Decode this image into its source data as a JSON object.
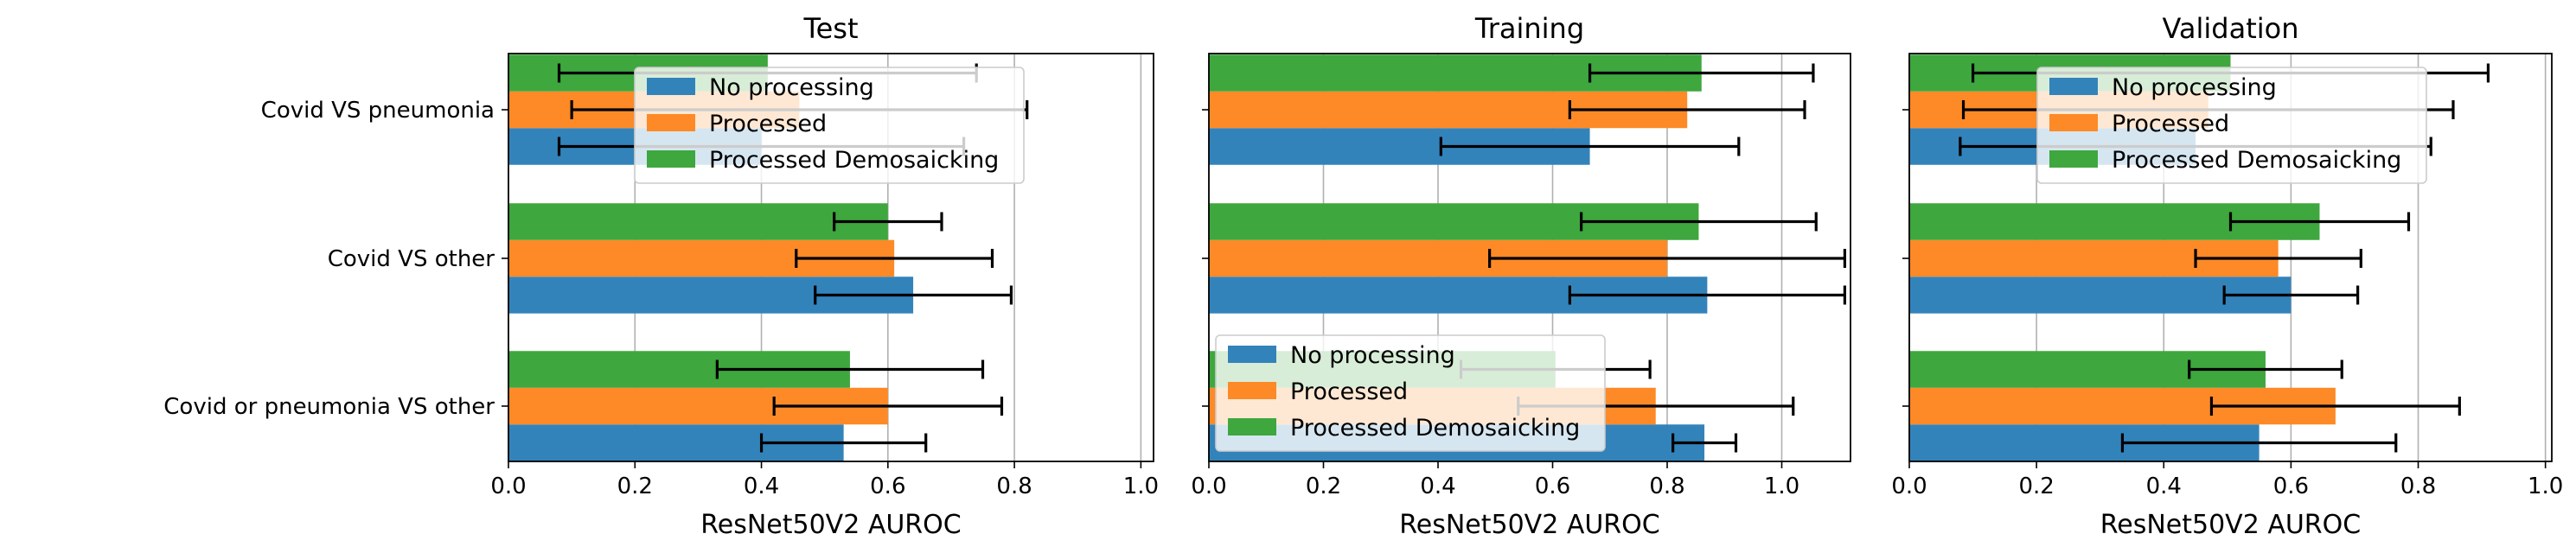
{
  "colors": {
    "No processing": "#3383bb",
    "Processed": "#fd8a26",
    "Processed Demosaicking": "#3ea73e",
    "grid": "#b0b0b0",
    "errorbar": "#000000"
  },
  "chart_data": [
    {
      "type": "bar",
      "orientation": "horizontal",
      "title": "Test",
      "xlabel": "ResNet50V2 AUROC",
      "xlim": [
        0,
        1.02
      ],
      "xticks": [
        0.0,
        0.2,
        0.4,
        0.6,
        0.8,
        1.0
      ],
      "xtick_labels": [
        "0.0",
        "0.2",
        "0.4",
        "0.6",
        "0.8",
        "1.0"
      ],
      "grid": "x",
      "legend_position": "top-center",
      "categories": [
        "Covid VS pneumonia",
        "Covid VS other",
        "Covid or pneumonia VS other"
      ],
      "series": [
        {
          "name": "No processing",
          "values": [
            0.4,
            0.64,
            0.53
          ],
          "errors": [
            0.32,
            0.155,
            0.13
          ]
        },
        {
          "name": "Processed",
          "values": [
            0.46,
            0.61,
            0.6
          ],
          "errors": [
            0.36,
            0.155,
            0.18
          ]
        },
        {
          "name": "Processed Demosaicking",
          "values": [
            0.41,
            0.6,
            0.54
          ],
          "errors": [
            0.33,
            0.085,
            0.21
          ]
        }
      ]
    },
    {
      "type": "bar",
      "orientation": "horizontal",
      "title": "Training",
      "xlabel": "ResNet50V2 AUROC",
      "xlim": [
        0,
        1.12
      ],
      "xticks": [
        0.0,
        0.2,
        0.4,
        0.6,
        0.8,
        1.0
      ],
      "xtick_labels": [
        "0.0",
        "0.2",
        "0.4",
        "0.6",
        "0.8",
        "1.0"
      ],
      "grid": "x",
      "legend_position": "lower-left",
      "categories": [
        "Covid VS pneumonia",
        "Covid VS other",
        "Covid or pneumonia VS other"
      ],
      "series": [
        {
          "name": "No processing",
          "values": [
            0.665,
            0.87,
            0.865
          ],
          "errors": [
            0.26,
            0.24,
            0.055
          ]
        },
        {
          "name": "Processed",
          "values": [
            0.835,
            0.8,
            0.78
          ],
          "errors": [
            0.205,
            0.31,
            0.24
          ]
        },
        {
          "name": "Processed Demosaicking",
          "values": [
            0.86,
            0.855,
            0.605
          ],
          "errors": [
            0.195,
            0.205,
            0.165
          ]
        }
      ]
    },
    {
      "type": "bar",
      "orientation": "horizontal",
      "title": "Validation",
      "xlabel": "ResNet50V2 AUROC",
      "xlim": [
        0,
        1.01
      ],
      "xticks": [
        0.0,
        0.2,
        0.4,
        0.6,
        0.8,
        1.0
      ],
      "xtick_labels": [
        "0.0",
        "0.2",
        "0.4",
        "0.6",
        "0.8",
        "1.0"
      ],
      "grid": "x",
      "legend_position": "top-center",
      "categories": [
        "Covid VS pneumonia",
        "Covid VS other",
        "Covid or pneumonia VS other"
      ],
      "series": [
        {
          "name": "No processing",
          "values": [
            0.45,
            0.6,
            0.55
          ],
          "errors": [
            0.37,
            0.105,
            0.215
          ]
        },
        {
          "name": "Processed",
          "values": [
            0.47,
            0.58,
            0.67
          ],
          "errors": [
            0.385,
            0.13,
            0.195
          ]
        },
        {
          "name": "Processed Demosaicking",
          "values": [
            0.505,
            0.645,
            0.56
          ],
          "errors": [
            0.405,
            0.14,
            0.12
          ]
        }
      ]
    }
  ]
}
